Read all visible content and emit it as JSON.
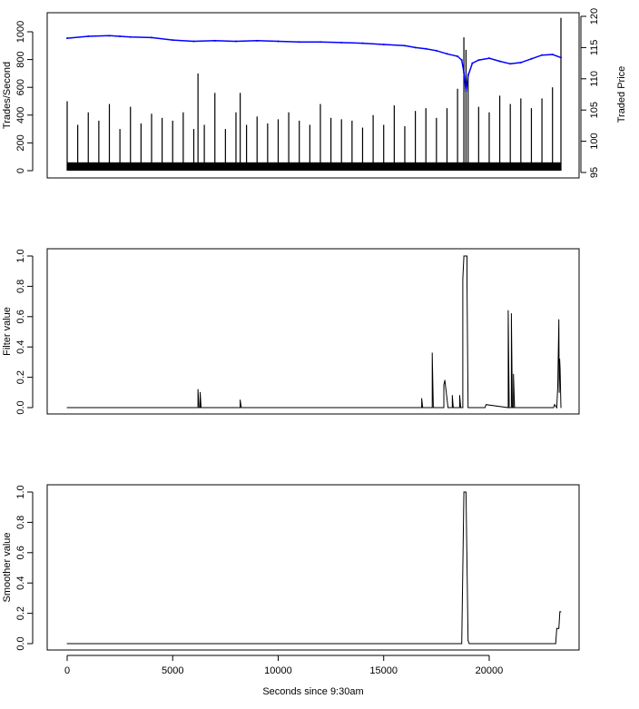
{
  "chart_data": [
    {
      "type": "bar",
      "panel": "top",
      "ylabel": "Trades/Second",
      "y2label": "Traded Price",
      "xlim": [
        0,
        23400
      ],
      "ylim": [
        0,
        1000
      ],
      "y2lim": [
        95,
        120
      ],
      "yticks": [
        "0",
        "200",
        "400",
        "600",
        "800",
        "1000"
      ],
      "y2ticks": [
        "95",
        "100",
        "105",
        "110",
        "115",
        "120"
      ],
      "grid": false,
      "series": [
        {
          "name": "",
          "kind": "bars",
          "color": "#000000",
          "x": [
            0,
            500,
            1000,
            1500,
            2000,
            2500,
            3000,
            3500,
            4000,
            4500,
            5000,
            5500,
            6000,
            6200,
            6500,
            7000,
            7500,
            8000,
            8200,
            8500,
            9000,
            9500,
            10000,
            10500,
            11000,
            11500,
            12000,
            12500,
            13000,
            13500,
            14000,
            14500,
            15000,
            15500,
            16000,
            16500,
            17000,
            17500,
            18000,
            18500,
            18800,
            18900,
            19000,
            19500,
            20000,
            20500,
            21000,
            21500,
            22000,
            22500,
            23000,
            23400
          ],
          "values": [
            500,
            330,
            420,
            360,
            480,
            300,
            460,
            340,
            410,
            380,
            360,
            420,
            300,
            700,
            330,
            560,
            300,
            420,
            560,
            330,
            390,
            340,
            370,
            420,
            360,
            330,
            480,
            380,
            370,
            360,
            310,
            400,
            330,
            470,
            320,
            430,
            450,
            380,
            450,
            590,
            960,
            870,
            700,
            460,
            420,
            540,
            480,
            520,
            450,
            520,
            600,
            1100
          ]
        },
        {
          "name": "",
          "kind": "line",
          "color": "#0000ff",
          "axis": "right",
          "x": [
            0,
            1000,
            2000,
            2500,
            3000,
            4000,
            5000,
            6000,
            7000,
            8000,
            9000,
            10000,
            11000,
            12000,
            13000,
            14000,
            15000,
            16000,
            16500,
            17000,
            17500,
            18000,
            18500,
            18700,
            18800,
            18900,
            19000,
            19200,
            19500,
            20000,
            20500,
            21000,
            21500,
            22000,
            22500,
            23000,
            23400
          ],
          "values": [
            116.5,
            116.8,
            116.9,
            116.8,
            116.7,
            116.6,
            116.2,
            116.0,
            116.1,
            116.0,
            116.1,
            116.0,
            115.9,
            115.9,
            115.8,
            115.7,
            115.5,
            115.3,
            115.0,
            114.8,
            114.5,
            114.0,
            113.6,
            113.0,
            111.0,
            108.0,
            110.5,
            112.5,
            113.0,
            113.3,
            112.8,
            112.4,
            112.6,
            113.2,
            113.8,
            113.9,
            113.4
          ]
        }
      ]
    },
    {
      "type": "line",
      "panel": "middle",
      "ylabel": "Filter value",
      "xlim": [
        0,
        23400
      ],
      "ylim": [
        0,
        1
      ],
      "yticks": [
        "0.0",
        "0.2",
        "0.4",
        "0.6",
        "0.8",
        "1.0"
      ],
      "grid": false,
      "series": [
        {
          "name": "",
          "color": "#000000",
          "x": [
            0,
            6200,
            6200,
            6250,
            6300,
            6300,
            6350,
            8200,
            8200,
            8250,
            16800,
            16800,
            16850,
            17300,
            17300,
            17350,
            17850,
            17850,
            17900,
            18050,
            18100,
            18250,
            18250,
            18300,
            18600,
            18600,
            18650,
            18750,
            18750,
            18800,
            18800,
            18900,
            18950,
            18950,
            19000,
            19050,
            19800,
            19850,
            20900,
            20900,
            20950,
            21050,
            21050,
            21100,
            21150,
            21150,
            21200,
            23050,
            23100,
            23200,
            23250,
            23300,
            23320,
            23340,
            23360,
            23400
          ],
          "values": [
            0,
            0,
            0.12,
            0,
            0,
            0.1,
            0,
            0,
            0.05,
            0,
            0,
            0.06,
            0,
            0,
            0.36,
            0,
            0,
            0.15,
            0.18,
            0,
            0,
            0,
            0.08,
            0,
            0,
            0.08,
            0,
            0,
            0.85,
            1.0,
            1.0,
            1.0,
            1.0,
            0.82,
            0,
            0,
            0,
            0.02,
            0,
            0.64,
            0,
            0,
            0.62,
            0,
            0,
            0.22,
            0,
            0,
            0.02,
            0,
            0.14,
            0.58,
            0.1,
            0.32,
            0.25,
            0
          ]
        }
      ]
    },
    {
      "type": "line",
      "panel": "bottom",
      "ylabel": "Smoother value",
      "xlabel": "Seconds since 9:30am",
      "xlim": [
        0,
        23400
      ],
      "ylim": [
        0,
        1
      ],
      "xticks": [
        "0",
        "5000",
        "10000",
        "15000",
        "20000"
      ],
      "yticks": [
        "0.0",
        "0.2",
        "0.4",
        "0.6",
        "0.8",
        "1.0"
      ],
      "grid": false,
      "series": [
        {
          "name": "",
          "color": "#000000",
          "x": [
            0,
            18700,
            18800,
            18900,
            19000,
            19050,
            23150,
            23200,
            23300,
            23350,
            23400
          ],
          "values": [
            0,
            0,
            1.0,
            1.0,
            0.02,
            0,
            0,
            0.1,
            0.1,
            0.21,
            0.21
          ]
        }
      ]
    }
  ]
}
